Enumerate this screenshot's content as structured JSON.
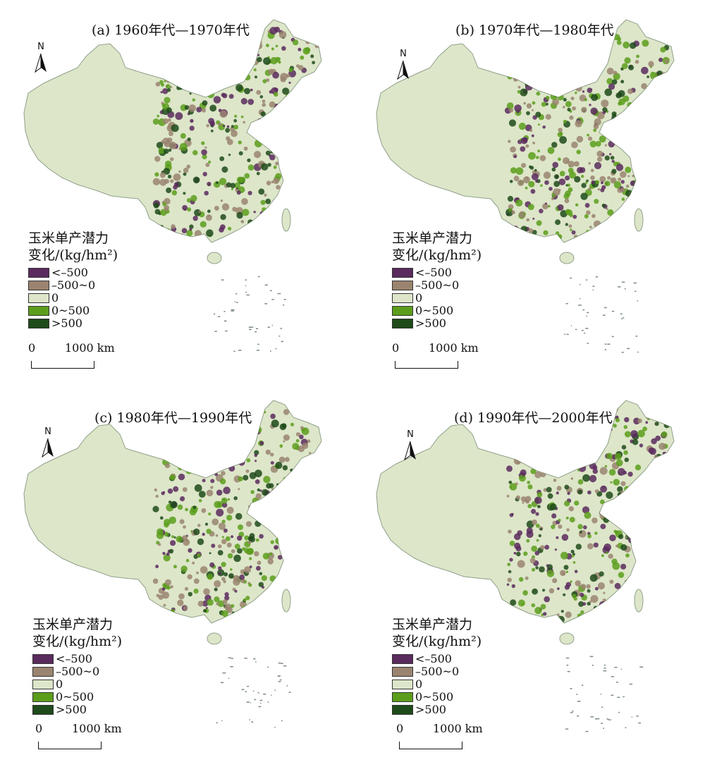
{
  "panels": [
    {
      "title": "(a) 1960年代—1970年代",
      "north": "N"
    },
    {
      "title": "(b) 1970年代—1980年代",
      "north": "N"
    },
    {
      "title": "(c) 1980年代—1990年代",
      "north": "N"
    },
    {
      "title": "(d) 1990年代—2000年代",
      "north": "N"
    }
  ],
  "legend": {
    "title_line1": "玉米单产潜力",
    "title_line2": "变化/(kg/hm²)",
    "items": [
      {
        "label": "<–500",
        "color": "#5b2a5e"
      },
      {
        "label": "–500~0",
        "color": "#9a8470"
      },
      {
        "label": "0",
        "color": "#dde6c9"
      },
      {
        "label": "0~500",
        "color": "#5c9e1c"
      },
      {
        "label": ">500",
        "color": "#1f4a1a"
      }
    ]
  },
  "scalebar": {
    "start": "0",
    "end": "1000 km"
  },
  "colors": {
    "land": "#dde6c9",
    "outline": "#8fa08a",
    "islands": "#7d8c8a"
  }
}
